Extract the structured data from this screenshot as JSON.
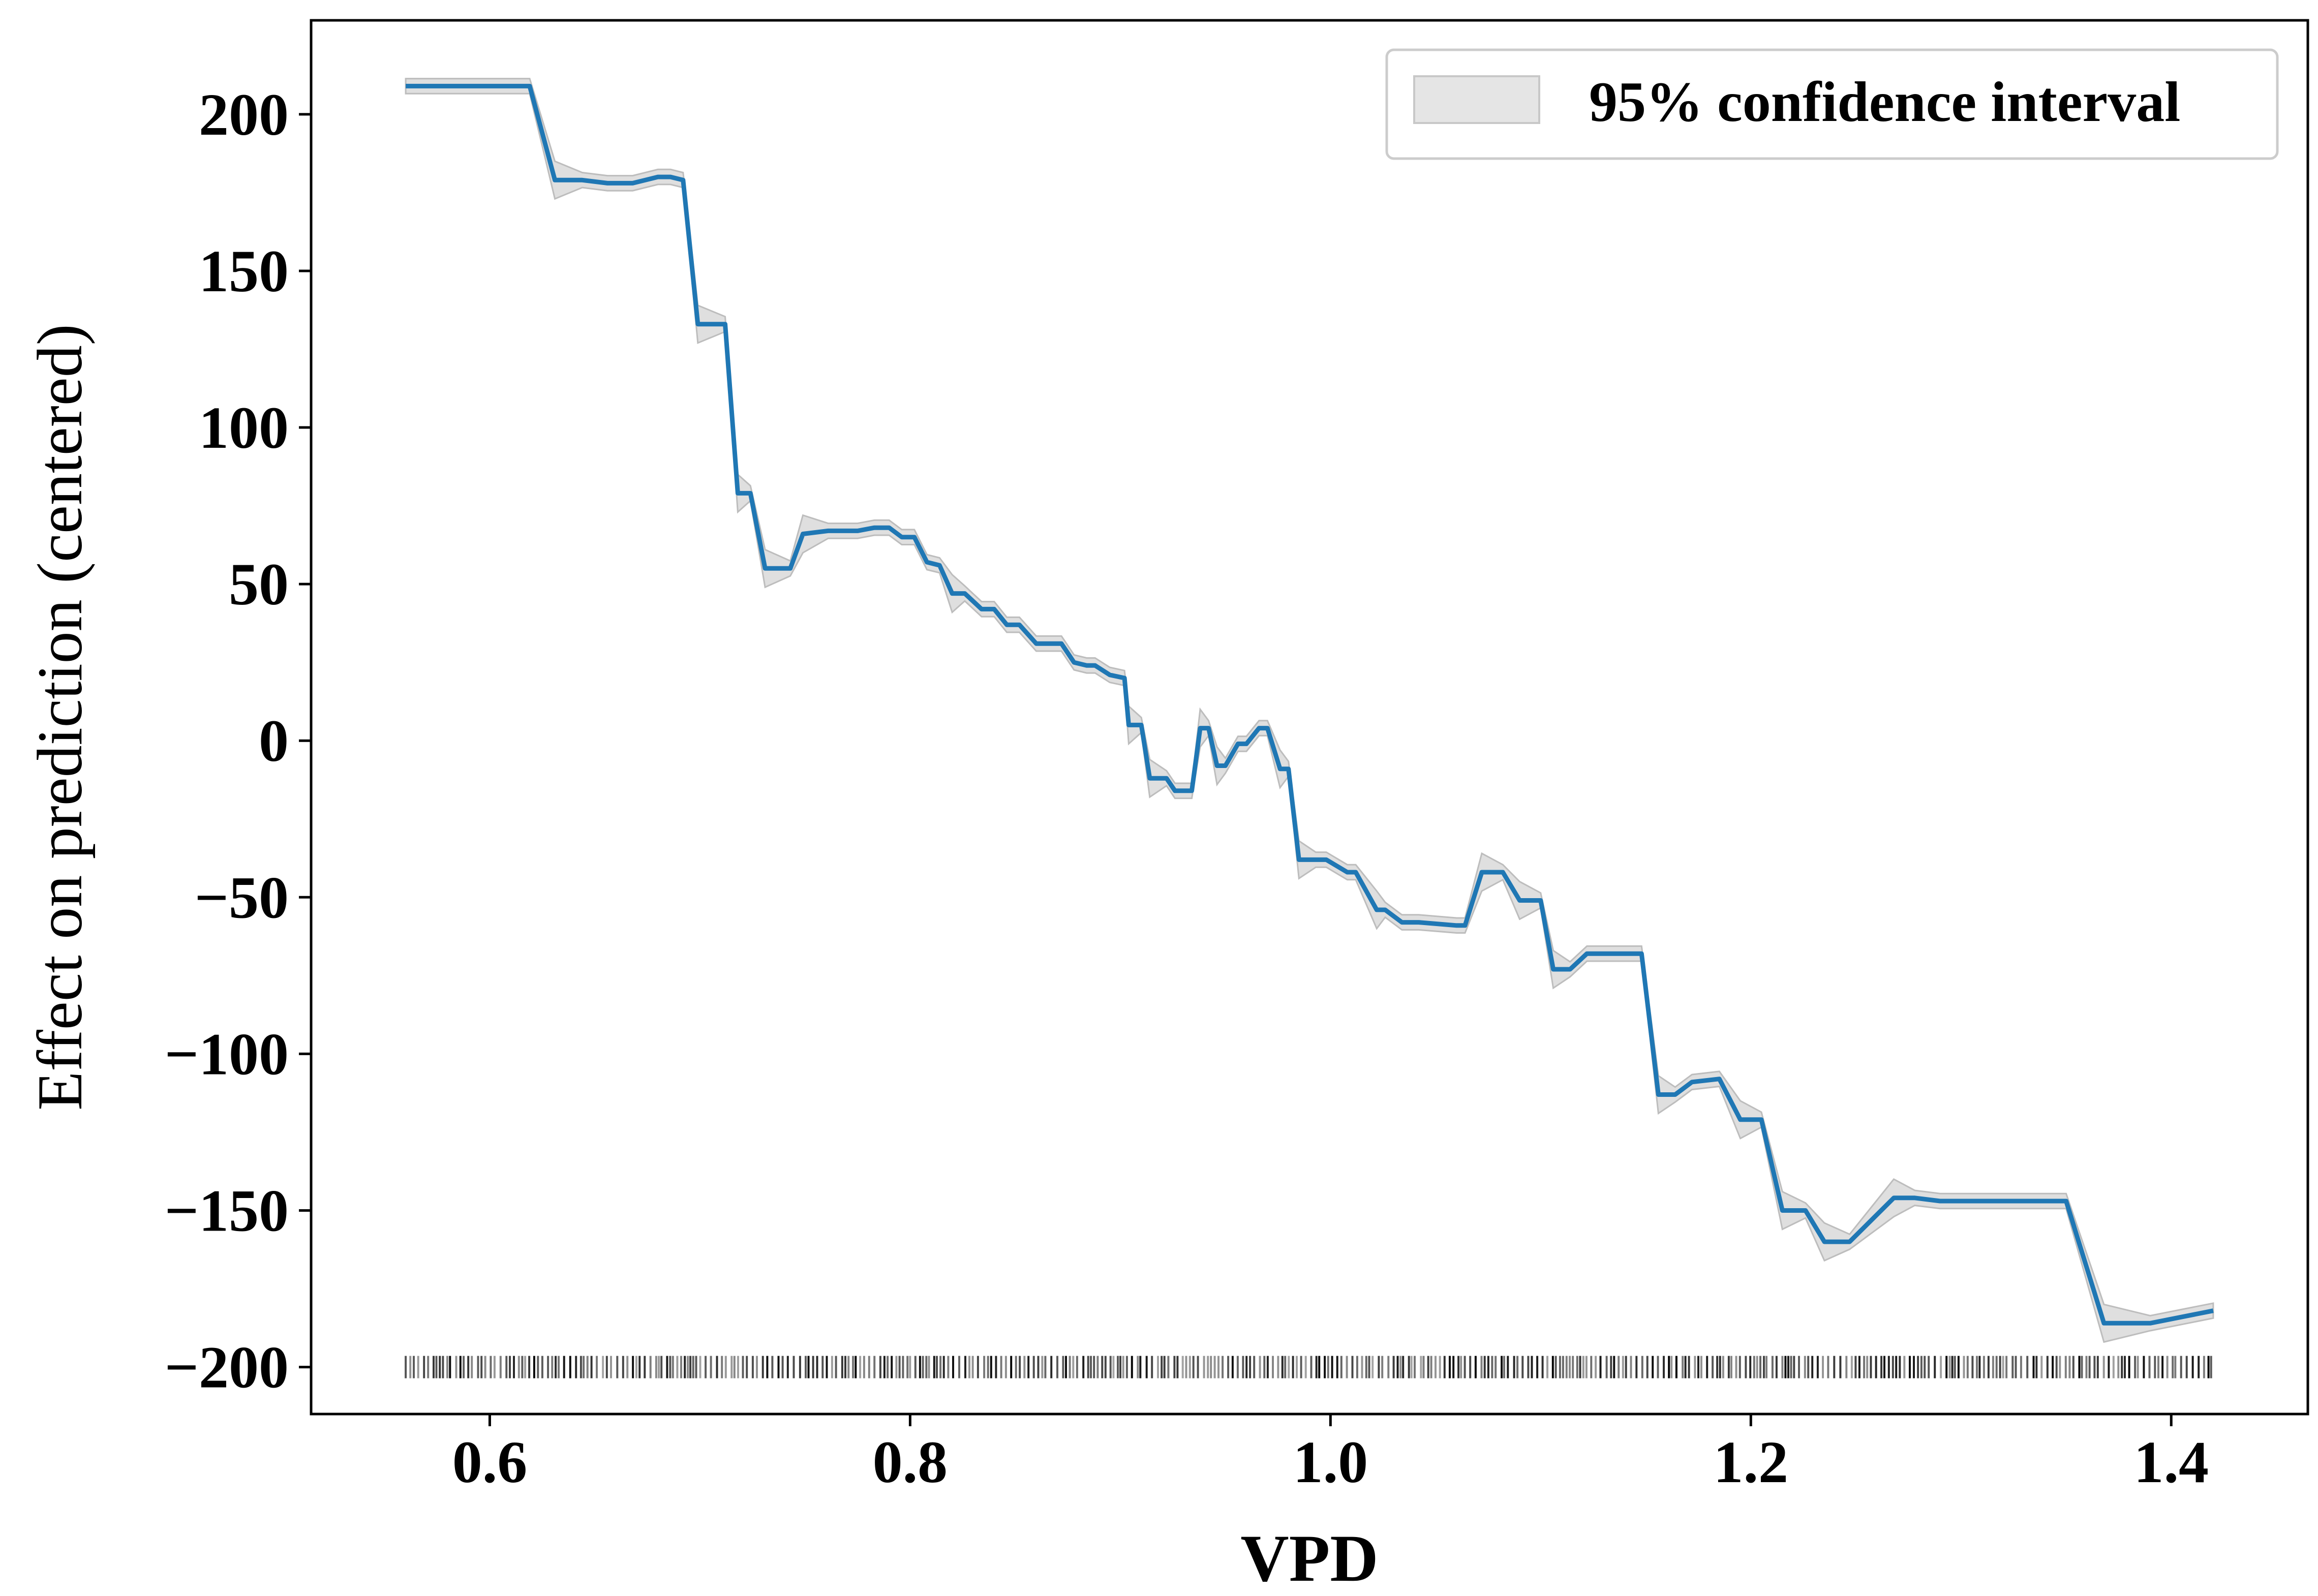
{
  "chart_data": {
    "type": "line",
    "title": "",
    "xlabel": "VPD",
    "ylabel": "Effect on prediction (centered)",
    "xlim": [
      0.515,
      1.465
    ],
    "ylim": [
      -215,
      230
    ],
    "x_ticks": [
      0.6,
      0.8,
      1.0,
      1.2,
      1.4
    ],
    "x_tick_labels": [
      "0.6",
      "0.8",
      "1.0",
      "1.2",
      "1.4"
    ],
    "y_ticks": [
      200,
      150,
      100,
      50,
      0,
      -50,
      -100,
      -150,
      -200
    ],
    "y_tick_labels": [
      "200",
      "150",
      "100",
      "50",
      "0",
      "−50",
      "−100",
      "−150",
      "−200"
    ],
    "grid": false,
    "legend": {
      "position": "top-right",
      "entries": [
        "95% confidence interval"
      ]
    },
    "colors": {
      "line": "#1f77b4",
      "band": "#d9d9d9",
      "rug": "#000000"
    },
    "series": [
      {
        "x": [
          0.56,
          0.619,
          0.631,
          0.644,
          0.656,
          0.668,
          0.68,
          0.686,
          0.692,
          0.699,
          0.712,
          0.718,
          0.724,
          0.731,
          0.743,
          0.749,
          0.761,
          0.775,
          0.783,
          0.79,
          0.796,
          0.802,
          0.808,
          0.814,
          0.82,
          0.826,
          0.834,
          0.84,
          0.846,
          0.852,
          0.86,
          0.868,
          0.872,
          0.878,
          0.884,
          0.888,
          0.895,
          0.902,
          0.904,
          0.91,
          0.914,
          0.922,
          0.926,
          0.934,
          0.938,
          0.942,
          0.946,
          0.95,
          0.956,
          0.96,
          0.966,
          0.97,
          0.976,
          0.98,
          0.985,
          0.993,
          0.998,
          1.008,
          1.012,
          1.022,
          1.026,
          1.034,
          1.042,
          1.06,
          1.064,
          1.072,
          1.082,
          1.09,
          1.1,
          1.106,
          1.114,
          1.122,
          1.13,
          1.148,
          1.156,
          1.164,
          1.172,
          1.185,
          1.195,
          1.205,
          1.215,
          1.226,
          1.235,
          1.247,
          1.268,
          1.278,
          1.29,
          1.3,
          1.312,
          1.35,
          1.368,
          1.39,
          1.42
        ],
        "y": [
          209,
          209,
          179,
          179,
          178,
          178,
          180,
          180,
          179,
          133,
          133,
          79,
          79,
          55,
          55,
          66,
          67,
          67,
          68,
          68,
          65,
          65,
          57,
          56,
          47,
          47,
          42,
          42,
          37,
          37,
          31,
          31,
          31,
          25,
          24,
          24,
          21,
          20,
          5,
          5,
          -12,
          -12,
          -16,
          -16,
          4,
          4,
          -8,
          -8,
          -1,
          -1,
          4,
          4,
          -9,
          -9,
          -38,
          -38,
          -38,
          -42,
          -42,
          -54,
          -54,
          -58,
          -58,
          -59,
          -59,
          -42,
          -42,
          -51,
          -51,
          -73,
          -73,
          -68,
          -68,
          -68,
          -113,
          -113,
          -109,
          -108,
          -121,
          -121,
          -150,
          -150,
          -160,
          -160,
          -146,
          -146,
          -147,
          -147,
          -147,
          -147,
          -186,
          -186,
          -182
        ]
      }
    ]
  }
}
